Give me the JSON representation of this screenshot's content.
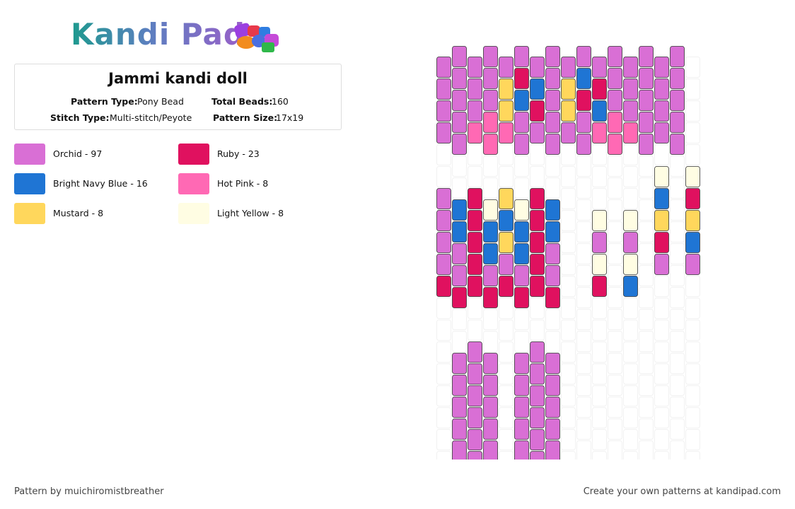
{
  "logo": "Kandi Pad",
  "pattern": {
    "title": "Jammi kandi doll",
    "fields": [
      {
        "label": "Pattern Type:",
        "value": "Pony Bead"
      },
      {
        "label": "Total Beads:",
        "value": "160"
      },
      {
        "label": "Stitch Type:",
        "value": "Multi-stitch/Peyote"
      },
      {
        "label": "Pattern Size:",
        "value": "17x19"
      }
    ]
  },
  "legend": [
    {
      "name": "Orchid - 97",
      "color": "#d96fd5"
    },
    {
      "name": "Ruby - 23",
      "color": "#e0115f"
    },
    {
      "name": "Bright Navy Blue - 16",
      "color": "#1f75d4"
    },
    {
      "name": "Hot Pink - 8",
      "color": "#ff69b4"
    },
    {
      "name": "Mustard - 8",
      "color": "#ffd75c"
    },
    {
      "name": "Light Yellow - 8",
      "color": "#fffde3"
    }
  ],
  "footer": {
    "credit": "Pattern by muichiromistbreather",
    "cta": "Create your own patterns at kandipad.com"
  }
}
